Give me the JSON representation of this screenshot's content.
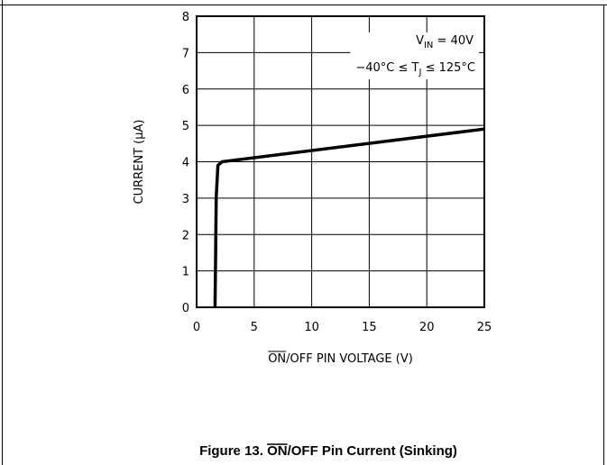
{
  "chart_data": {
    "type": "line",
    "x_ticks": [
      "0",
      "5",
      "10",
      "15",
      "20",
      "25"
    ],
    "y_ticks": [
      "0",
      "1",
      "2",
      "3",
      "4",
      "5",
      "6",
      "7",
      "8"
    ],
    "xlim": [
      0,
      25
    ],
    "ylim": [
      0,
      8
    ],
    "grid": true,
    "xlabel": {
      "overbar": "ON",
      "rest": "/OFF PIN VOLTAGE (V)"
    },
    "ylabel": "CURRENT (μA)",
    "annotations": [
      {
        "id": "vin",
        "base": "V",
        "sub": "IN",
        "rest": " = 40V"
      },
      {
        "id": "tj",
        "pre": "−40°C ≤ T",
        "sub": "J",
        "rest": " ≤ 125°C"
      }
    ],
    "series": [
      {
        "x": [
          1.6,
          1.65,
          1.7,
          1.85,
          2.2,
          25
        ],
        "y": [
          0,
          1.5,
          3.0,
          3.9,
          4.0,
          4.9
        ],
        "color": "#000000"
      }
    ]
  },
  "caption": {
    "prefix": "Figure 13. ",
    "overbar": "ON",
    "rest": "/OFF Pin Current (Sinking)"
  }
}
